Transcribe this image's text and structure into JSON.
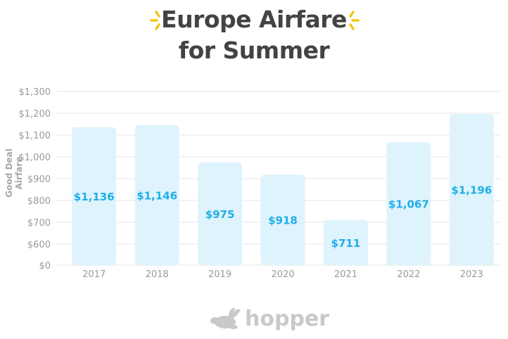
{
  "title": {
    "line1": "Europe Airfare",
    "line2": "for Summer"
  },
  "brand": {
    "name": "hopper"
  },
  "colors": {
    "bar_fill": "#dff3fc",
    "label": "#1eaee8",
    "grid": "#e6e6e6",
    "tick": "#9a9a9a",
    "title": "#434343",
    "sparkle": "#f5c518"
  },
  "chart_data": {
    "type": "bar",
    "title": "Europe Airfare for Summer",
    "xlabel": "",
    "ylabel": "Good Deal Airfare",
    "categories": [
      "2017",
      "2018",
      "2019",
      "2020",
      "2021",
      "2022",
      "2023"
    ],
    "values": [
      1136,
      1146,
      975,
      918,
      711,
      1067,
      1196
    ],
    "data_labels": [
      "$1,136",
      "$1,146",
      "$975",
      "$918",
      "$711",
      "$1,067",
      "$1,196"
    ],
    "y_ticks": [
      0,
      600,
      700,
      800,
      900,
      1000,
      1100,
      1200,
      1300
    ],
    "y_tick_labels": [
      "$0",
      "$600",
      "$700",
      "$800",
      "$900",
      "$1,000",
      "$1,100",
      "$1,200",
      "$1,300"
    ],
    "axis_break": "between $0 and $600",
    "ylim": [
      0,
      1300
    ],
    "grid": true
  }
}
